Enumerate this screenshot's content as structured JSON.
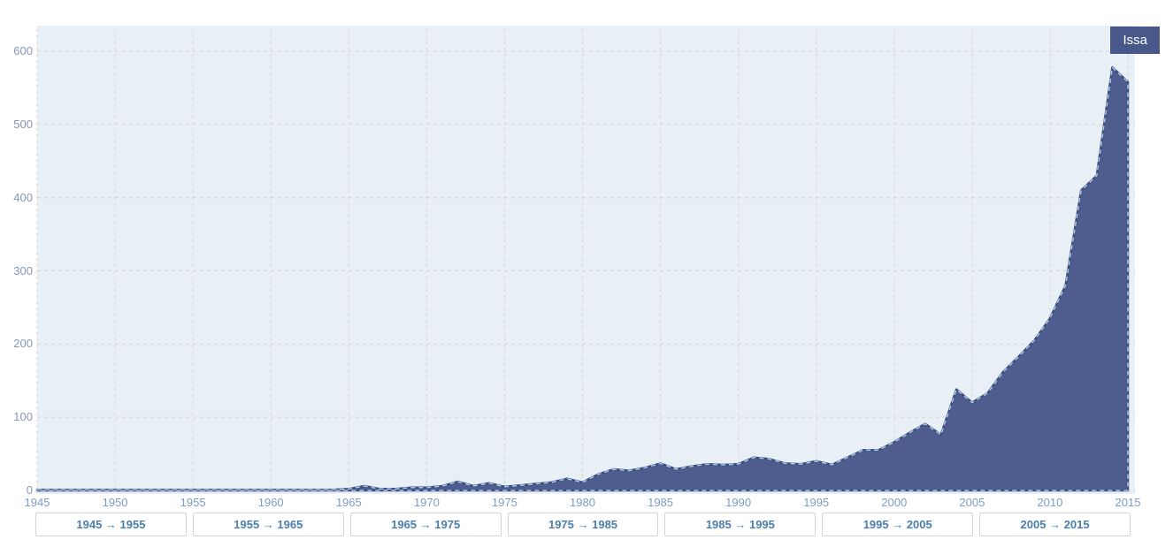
{
  "legend": {
    "label": "Issa"
  },
  "colors": {
    "plot_bg": "#e9f0f5",
    "grid": "#d0d4d8",
    "area_fill": "#4e5d8e",
    "area_stroke": "#3e4e7f",
    "area_dash": "#a9c9e5",
    "y_label": "#8598b4",
    "x_label": "#7d9cc4",
    "button_text": "#4b7fac",
    "legend_bg": "#49588b",
    "legend_text": "#ffffff"
  },
  "chart_data": {
    "type": "area",
    "title": "",
    "xlabel": "",
    "ylabel": "",
    "series_name": "Issa",
    "legend_position": "top-right",
    "grid": true,
    "ylim": [
      0,
      635
    ],
    "yticks": [
      0,
      100,
      200,
      300,
      400,
      500,
      600
    ],
    "xticks": [
      1945,
      1950,
      1955,
      1960,
      1965,
      1970,
      1975,
      1980,
      1985,
      1990,
      1995,
      2000,
      2005,
      2010,
      2015
    ],
    "x": [
      1945,
      1946,
      1947,
      1948,
      1949,
      1950,
      1951,
      1952,
      1953,
      1954,
      1955,
      1956,
      1957,
      1958,
      1959,
      1960,
      1961,
      1962,
      1963,
      1964,
      1965,
      1966,
      1967,
      1968,
      1969,
      1970,
      1971,
      1972,
      1973,
      1974,
      1975,
      1976,
      1977,
      1978,
      1979,
      1980,
      1981,
      1982,
      1983,
      1984,
      1985,
      1986,
      1987,
      1988,
      1989,
      1990,
      1991,
      1992,
      1993,
      1994,
      1995,
      1996,
      1997,
      1998,
      1999,
      2000,
      2001,
      2002,
      2003,
      2004,
      2005,
      2006,
      2007,
      2008,
      2009,
      2010,
      2011,
      2012,
      2013,
      2014,
      2015
    ],
    "values": [
      1,
      1,
      1,
      1,
      1,
      1,
      1,
      1,
      1,
      1,
      1,
      1,
      1,
      1,
      1,
      1,
      1,
      1,
      1,
      1,
      2,
      6,
      2,
      2,
      4,
      4,
      6,
      12,
      6,
      10,
      5,
      7,
      9,
      11,
      16,
      11,
      22,
      29,
      27,
      31,
      37,
      29,
      33,
      36,
      35,
      36,
      45,
      43,
      37,
      36,
      40,
      35,
      45,
      55,
      55,
      66,
      79,
      91,
      76,
      138,
      120,
      133,
      162,
      183,
      205,
      235,
      280,
      410,
      430,
      578,
      558
    ]
  },
  "range_buttons": [
    {
      "label": "1945 → 1955"
    },
    {
      "label": "1955 → 1965"
    },
    {
      "label": "1965 → 1975"
    },
    {
      "label": "1975 → 1985"
    },
    {
      "label": "1985 → 1995"
    },
    {
      "label": "1995 → 2005"
    },
    {
      "label": "2005 → 2015"
    }
  ]
}
